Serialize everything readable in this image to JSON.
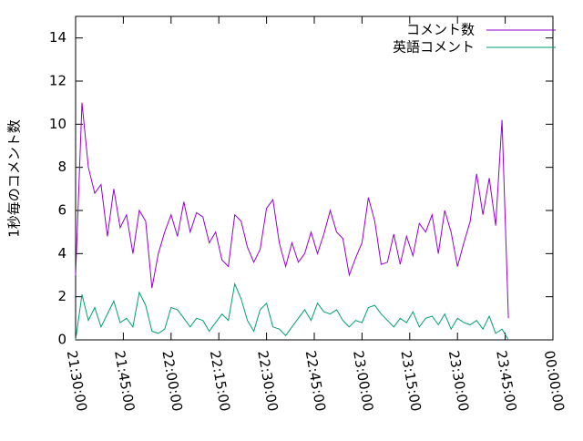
{
  "chart_data": {
    "type": "line",
    "ylabel": "1秒毎のコメント数",
    "x": [
      "21:30:00",
      "21:32:00",
      "21:34:00",
      "21:36:00",
      "21:38:00",
      "21:40:00",
      "21:42:00",
      "21:44:00",
      "21:46:00",
      "21:48:00",
      "21:50:00",
      "21:52:00",
      "21:54:00",
      "21:56:00",
      "21:58:00",
      "22:00:00",
      "22:02:00",
      "22:04:00",
      "22:06:00",
      "22:08:00",
      "22:10:00",
      "22:12:00",
      "22:14:00",
      "22:16:00",
      "22:18:00",
      "22:20:00",
      "22:22:00",
      "22:24:00",
      "22:26:00",
      "22:28:00",
      "22:30:00",
      "22:32:00",
      "22:34:00",
      "22:36:00",
      "22:38:00",
      "22:40:00",
      "22:42:00",
      "22:44:00",
      "22:46:00",
      "22:48:00",
      "22:50:00",
      "22:52:00",
      "22:54:00",
      "22:56:00",
      "22:58:00",
      "23:00:00",
      "23:02:00",
      "23:04:00",
      "23:06:00",
      "23:08:00",
      "23:10:00",
      "23:12:00",
      "23:14:00",
      "23:16:00",
      "23:18:00",
      "23:20:00",
      "23:22:00",
      "23:24:00",
      "23:26:00",
      "23:28:00",
      "23:30:00",
      "23:32:00",
      "23:34:00",
      "23:36:00",
      "23:38:00",
      "23:40:00",
      "23:42:00",
      "23:44:00",
      "23:46:00"
    ],
    "series": [
      {
        "name": "コメント数",
        "color": "#9400d3",
        "values": [
          3.0,
          11.0,
          8.0,
          6.8,
          7.2,
          4.8,
          7.0,
          5.2,
          5.8,
          4.0,
          6.0,
          5.5,
          2.4,
          4.0,
          5.0,
          5.8,
          4.8,
          6.4,
          5.0,
          5.9,
          5.7,
          4.5,
          5.0,
          3.7,
          3.4,
          5.8,
          5.5,
          4.3,
          3.6,
          4.2,
          6.1,
          6.5,
          4.5,
          3.4,
          4.5,
          3.6,
          4.0,
          5.0,
          4.0,
          4.9,
          6.0,
          5.0,
          4.7,
          3.0,
          3.8,
          4.5,
          6.6,
          5.5,
          3.5,
          3.6,
          4.9,
          3.5,
          4.8,
          3.9,
          5.4,
          5.0,
          5.8,
          4.0,
          6.0,
          5.0,
          3.4,
          4.5,
          5.5,
          7.7,
          5.8,
          7.5,
          5.3,
          10.2,
          1.0
        ]
      },
      {
        "name": "英語コメント",
        "color": "#009e73",
        "values": [
          0,
          2.1,
          0.9,
          1.5,
          0.6,
          1.2,
          1.8,
          0.8,
          1.0,
          0.6,
          2.2,
          1.6,
          0.4,
          0.3,
          0.5,
          1.5,
          1.4,
          1.0,
          0.6,
          1.0,
          0.9,
          0.4,
          0.8,
          1.2,
          0.9,
          2.6,
          1.9,
          0.9,
          0.4,
          1.4,
          1.7,
          0.6,
          0.5,
          0.2,
          0.6,
          1.0,
          1.4,
          0.9,
          1.7,
          1.3,
          1.2,
          1.4,
          0.9,
          0.6,
          0.9,
          0.8,
          1.5,
          1.6,
          1.2,
          0.9,
          0.6,
          1.0,
          0.8,
          1.3,
          0.6,
          1.0,
          1.1,
          0.7,
          1.2,
          0.5,
          1.0,
          0.8,
          0.7,
          0.9,
          0.5,
          1.1,
          0.3,
          0.5,
          0
        ]
      }
    ],
    "xlim": [
      "21:30:00",
      "00:00:00"
    ],
    "xticks": [
      "21:30:00",
      "21:45:00",
      "22:00:00",
      "22:15:00",
      "22:30:00",
      "22:45:00",
      "23:00:00",
      "23:15:00",
      "23:30:00",
      "23:45:00",
      "00:00:00"
    ],
    "ylim": [
      0,
      15
    ],
    "yticks": [
      0,
      2,
      4,
      6,
      8,
      10,
      12,
      14
    ],
    "legend": "upper right"
  }
}
